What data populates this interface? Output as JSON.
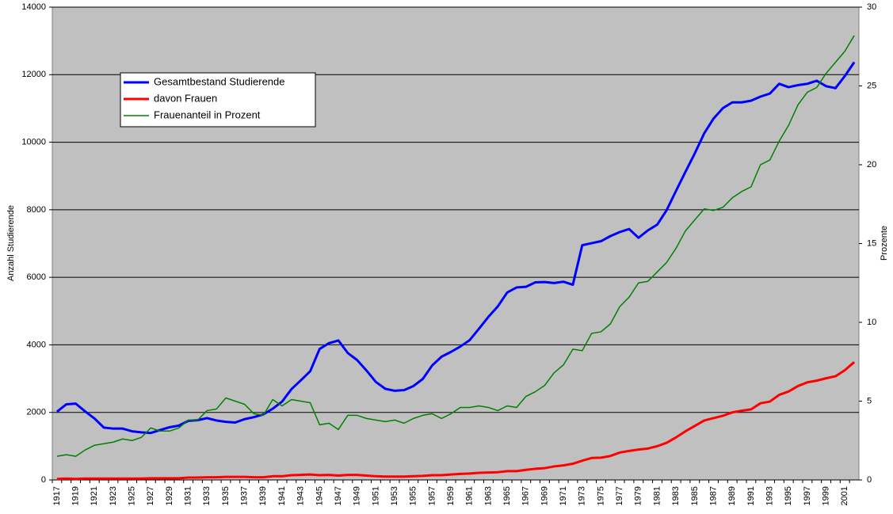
{
  "chart_data": {
    "type": "line",
    "categories": [
      "1917",
      null,
      "1919",
      null,
      "1921",
      null,
      "1923",
      null,
      "1925",
      null,
      "1927",
      null,
      "1929",
      null,
      "1931",
      null,
      "1933",
      null,
      "1935",
      null,
      "1937",
      null,
      "1939",
      null,
      "1941",
      null,
      "1943",
      null,
      "1945",
      null,
      "1947",
      null,
      "1949",
      null,
      "1951",
      null,
      "1953",
      null,
      "1955",
      null,
      "1957",
      null,
      "1959",
      null,
      "1961",
      null,
      "1963",
      null,
      "1965",
      null,
      "1967",
      null,
      "1969",
      null,
      "1971",
      null,
      "1973",
      null,
      "1975",
      null,
      "1977",
      null,
      "1979",
      null,
      "1981",
      null,
      "1983",
      null,
      "1985",
      null,
      "1987",
      null,
      "1989",
      null,
      "1991",
      null,
      "1993",
      null,
      "1995",
      null,
      "1997",
      null,
      "1999",
      null,
      "2001",
      null
    ],
    "series": [
      {
        "name": "Gesamtbestand Studierende",
        "color": "#0000ff",
        "width": 3,
        "values": [
          2020,
          2240,
          2260,
          2030,
          1820,
          1550,
          1520,
          1520,
          1440,
          1410,
          1390,
          1480,
          1560,
          1610,
          1750,
          1770,
          1830,
          1760,
          1720,
          1700,
          1800,
          1860,
          1940,
          2110,
          2320,
          2690,
          2950,
          3220,
          3880,
          4050,
          4130,
          3760,
          3550,
          3240,
          2900,
          2700,
          2640,
          2660,
          2780,
          2990,
          3390,
          3650,
          3790,
          3950,
          4140,
          4480,
          4830,
          5140,
          5550,
          5700,
          5720,
          5850,
          5860,
          5830,
          5870,
          5780,
          6950,
          7010,
          7070,
          7220,
          7340,
          7430,
          7170,
          7390,
          7560,
          7990,
          8560,
          9120,
          9670,
          10260,
          10700,
          11010,
          11180,
          11180,
          11230,
          11350,
          11440,
          11730,
          11630,
          11690,
          11730,
          11820,
          11660,
          11600,
          11960,
          12370
        ]
      },
      {
        "name": "davon Frauen",
        "color": "#ff0000",
        "width": 3,
        "values": [
          30,
          40,
          30,
          40,
          40,
          40,
          40,
          40,
          40,
          40,
          50,
          50,
          50,
          50,
          70,
          70,
          80,
          80,
          90,
          90,
          90,
          80,
          80,
          110,
          110,
          140,
          150,
          160,
          140,
          150,
          130,
          150,
          150,
          130,
          110,
          100,
          100,
          100,
          110,
          120,
          140,
          140,
          160,
          180,
          190,
          210,
          220,
          230,
          260,
          260,
          300,
          330,
          350,
          400,
          430,
          480,
          570,
          650,
          660,
          710,
          810,
          860,
          900,
          930,
          1000,
          1100,
          1260,
          1440,
          1600,
          1760,
          1830,
          1900,
          2000,
          2050,
          2090,
          2270,
          2320,
          2520,
          2620,
          2780,
          2890,
          2940,
          3010,
          3070,
          3250,
          3490
        ]
      },
      {
        "name": "Frauenanteil in Prozent",
        "color": "#008000",
        "width": 1.5,
        "axis": "y2",
        "values": [
          1.5,
          1.6,
          1.5,
          1.9,
          2.2,
          2.3,
          2.4,
          2.6,
          2.5,
          2.7,
          3.3,
          3.1,
          3.1,
          3.3,
          3.8,
          3.8,
          4.4,
          4.5,
          5.2,
          5.0,
          4.8,
          4.2,
          4.1,
          5.1,
          4.7,
          5.1,
          5.0,
          4.9,
          3.5,
          3.6,
          3.2,
          4.1,
          4.1,
          3.9,
          3.8,
          3.7,
          3.8,
          3.6,
          3.9,
          4.1,
          4.2,
          3.9,
          4.2,
          4.6,
          4.6,
          4.7,
          4.6,
          4.4,
          4.7,
          4.6,
          5.3,
          5.6,
          6.0,
          6.8,
          7.3,
          8.3,
          8.2,
          9.3,
          9.4,
          9.9,
          11.0,
          11.6,
          12.5,
          12.6,
          13.2,
          13.8,
          14.7,
          15.8,
          16.5,
          17.2,
          17.1,
          17.3,
          17.9,
          18.3,
          18.6,
          20.0,
          20.3,
          21.5,
          22.5,
          23.8,
          24.6,
          24.9,
          25.8,
          26.5,
          27.2,
          28.2
        ]
      }
    ],
    "y_label": "Anzahl Studierende",
    "y2_label": "Prozente",
    "ylim": [
      0,
      14000
    ],
    "yticks": [
      0,
      2000,
      4000,
      6000,
      8000,
      10000,
      12000,
      14000
    ],
    "y2lim": [
      0,
      30
    ],
    "y2ticks": [
      0,
      5,
      10,
      15,
      20,
      25,
      30
    ],
    "grid": true,
    "legend": "upper left",
    "background": "#c0c0c0"
  }
}
